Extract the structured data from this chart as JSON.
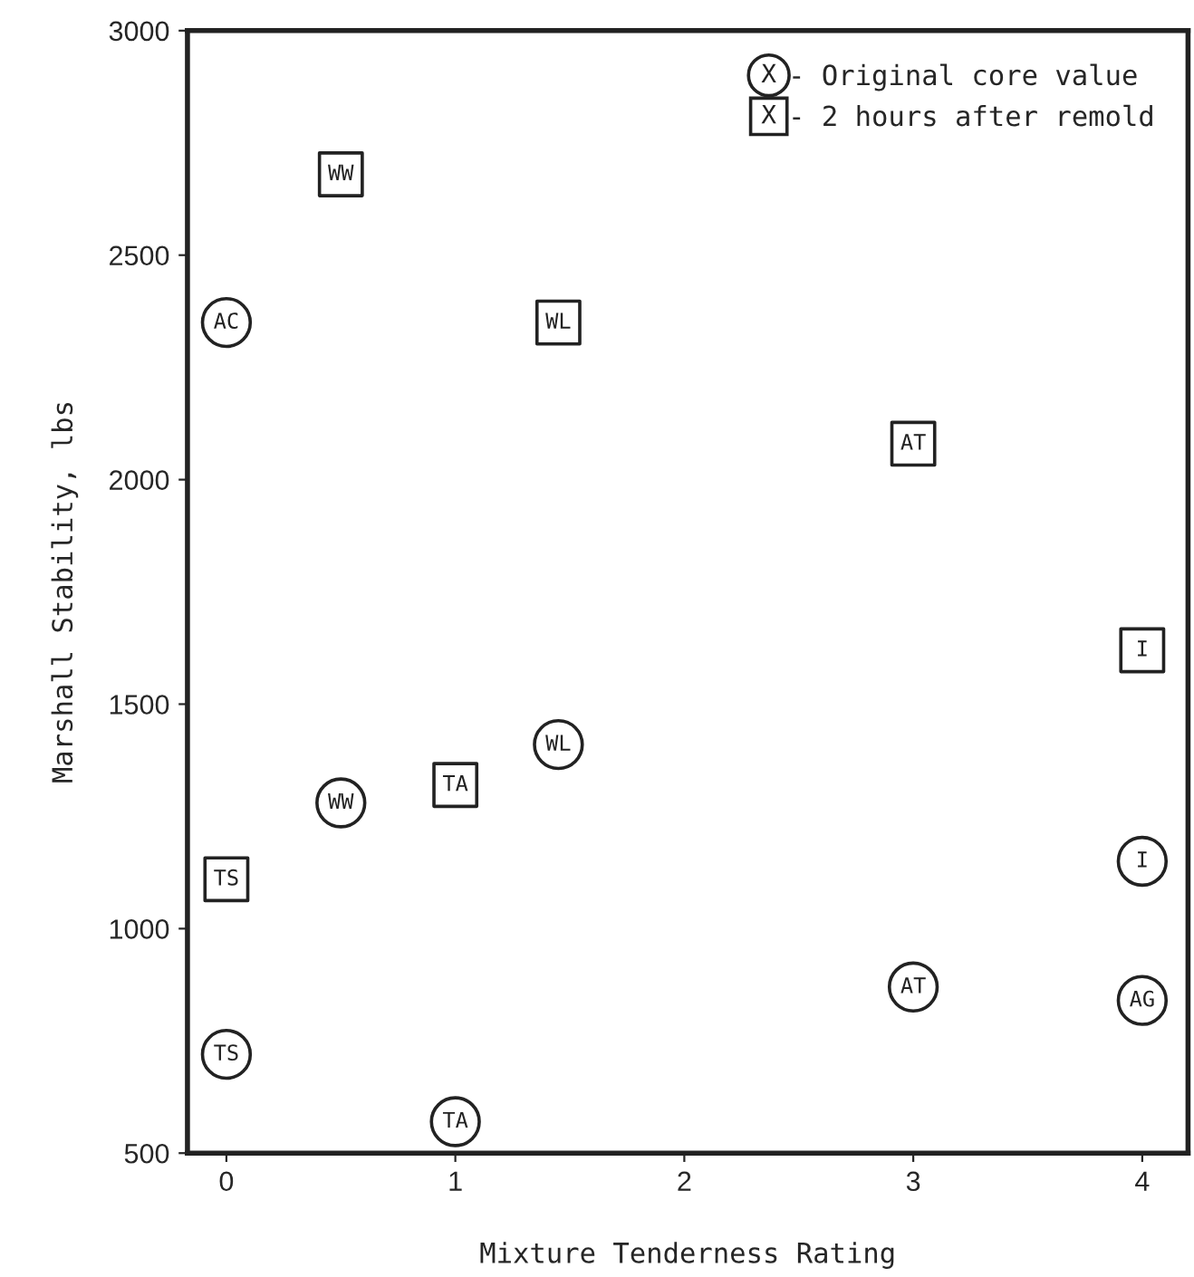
{
  "chart_data": {
    "type": "scatter",
    "xlabel": "Mixture Tenderness Rating",
    "ylabel": "Marshall Stability, lbs",
    "xlim": [
      -0.17,
      4.2
    ],
    "xticks": [
      0,
      1,
      2,
      3,
      4
    ],
    "ylim": [
      500,
      3000
    ],
    "yticks": [
      500,
      1000,
      1500,
      2000,
      2500,
      3000
    ],
    "grid": false,
    "legend": "top right",
    "annotations": [
      "X"
    ],
    "series": [
      {
        "name": "- Original core value",
        "color": "#222222",
        "marker": "circle",
        "x": [
          0,
          0.5,
          1.45,
          0,
          1,
          3,
          4,
          4
        ],
        "values": [
          2350,
          1280,
          1410,
          720,
          570,
          870,
          1150,
          840
        ],
        "value_labels": [
          "AC",
          "WW",
          "WL",
          "TS",
          "TA",
          "AT",
          "I",
          "AG"
        ]
      },
      {
        "name": "- 2 hours after remold",
        "color": "#222222",
        "marker": "square",
        "x": [
          0.5,
          1.45,
          3,
          4,
          1,
          0
        ],
        "values": [
          2680,
          2350,
          2080,
          1620,
          1320,
          1110
        ],
        "value_labels": [
          "WW",
          "WL",
          "AT",
          "I",
          "TA",
          "TS"
        ]
      }
    ]
  }
}
